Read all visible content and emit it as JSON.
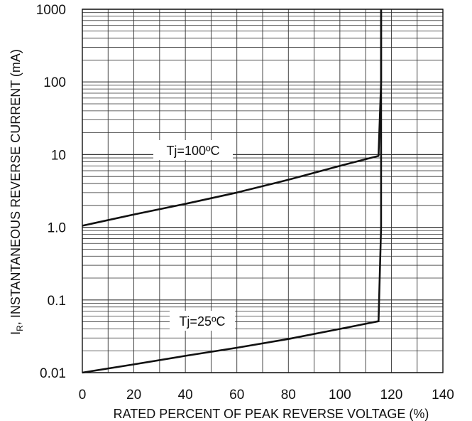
{
  "chart_data": {
    "type": "line",
    "xlabel": "RATED PERCENT OF PEAK REVERSE VOLTAGE (%)",
    "ylabel": "I_R, INSTANTANEOUS REVERSE CURRENT (mA)",
    "ylabel_main": "I",
    "ylabel_sub": "R",
    "ylabel_rest": ", INSTANTANEOUS REVERSE CURRENT (mA)",
    "xlim": [
      0,
      140
    ],
    "ylim": [
      0.01,
      1000
    ],
    "y_scale": "log",
    "grid": true,
    "x_ticks": [
      0,
      20,
      40,
      60,
      80,
      100,
      120,
      140
    ],
    "x_tick_labels": [
      "0",
      "20",
      "40",
      "60",
      "80",
      "100",
      "120",
      "140"
    ],
    "y_ticks": [
      0.01,
      0.1,
      1,
      10,
      100,
      1000
    ],
    "y_tick_labels": [
      "0.01",
      "0.1",
      "1.0",
      "10",
      "100",
      "1000"
    ],
    "series": [
      {
        "name": "Tj=100ºC",
        "x": [
          0,
          20,
          40,
          60,
          80,
          100,
          115,
          116,
          116
        ],
        "y": [
          1.05,
          1.5,
          2.1,
          3.0,
          4.5,
          7.0,
          9.6,
          100,
          1000
        ]
      },
      {
        "name": "Tj=25ºC",
        "x": [
          0,
          20,
          40,
          60,
          80,
          100,
          115,
          116,
          116
        ],
        "y": [
          0.01,
          0.013,
          0.017,
          0.022,
          0.029,
          0.04,
          0.051,
          1,
          1000
        ]
      }
    ]
  }
}
